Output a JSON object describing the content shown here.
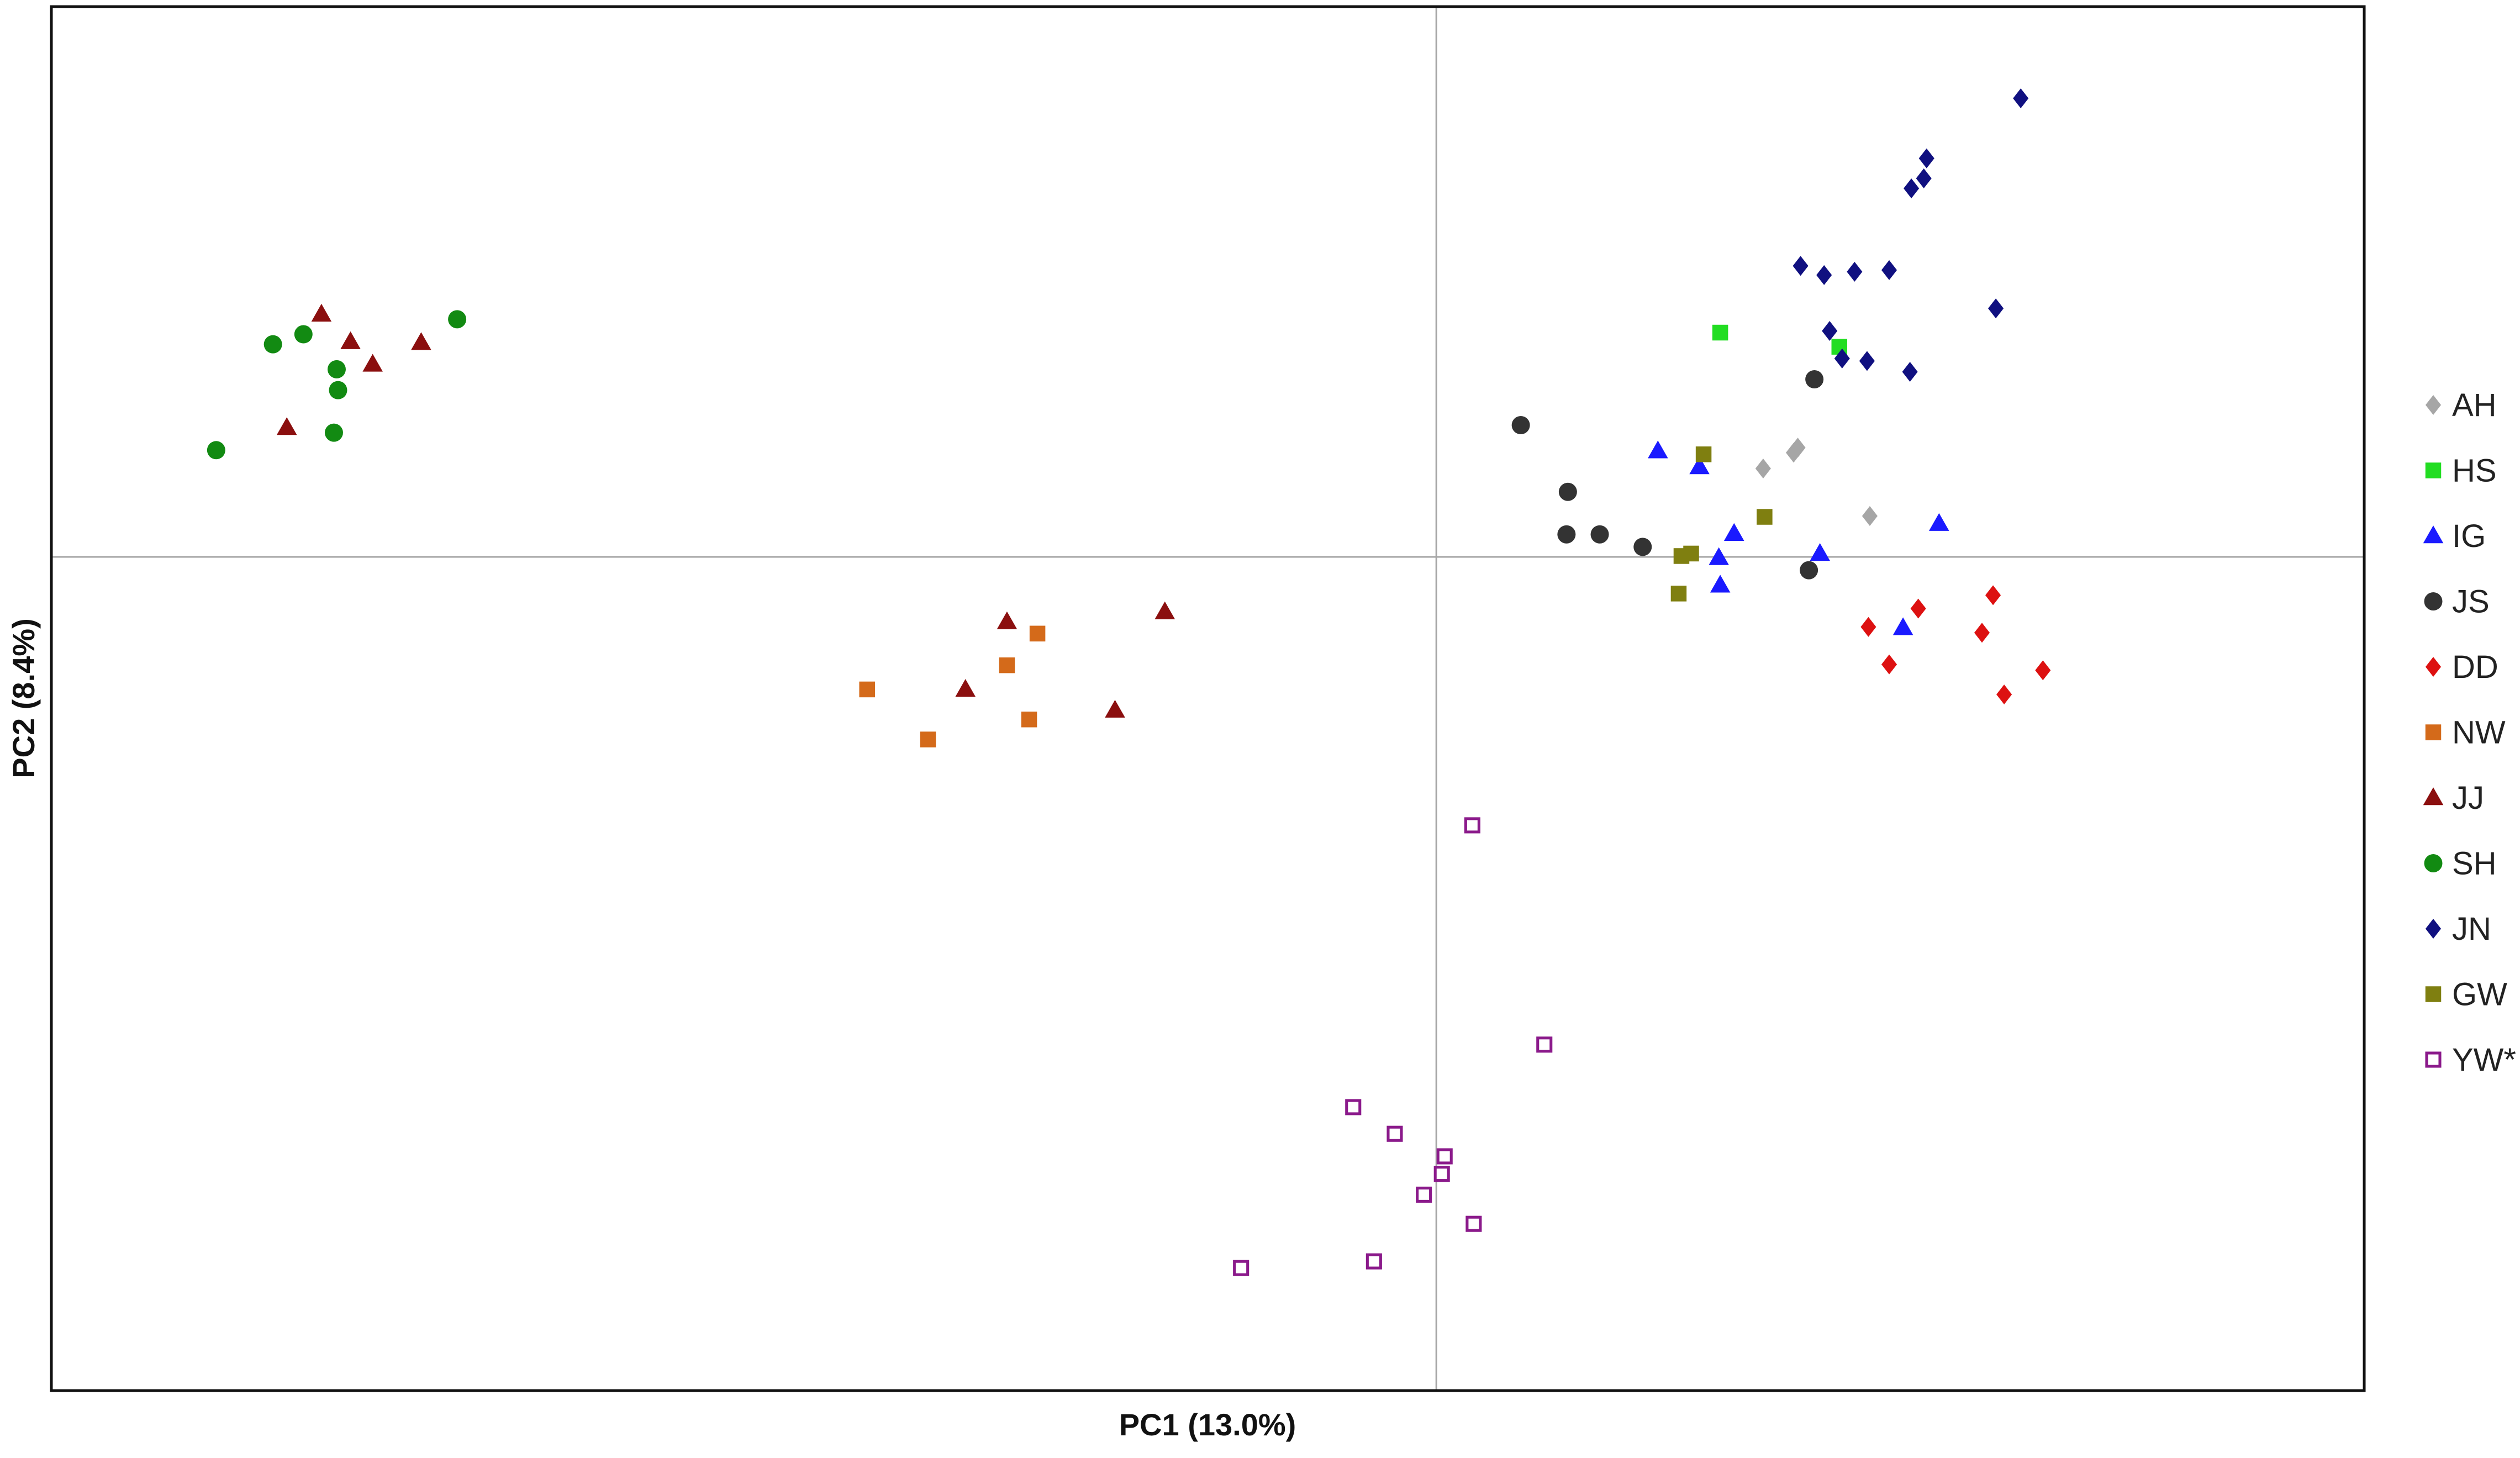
{
  "chart_data": {
    "type": "scatter",
    "title": "",
    "xlabel": "PC1 (13.0%)",
    "ylabel": "PC2 (8.4%)",
    "xlim": [
      -1.0,
      0.67
    ],
    "ylim": [
      -1.0,
      0.66
    ],
    "axis_ticks": false,
    "grid": false,
    "origin_lines": true,
    "legend_position": "right",
    "series": [
      {
        "name": "AH",
        "marker": "diamond",
        "color": "#a6a6a6",
        "filled": true,
        "points": [
          [
            0.236,
            0.106
          ],
          [
            0.258,
            0.125
          ],
          [
            0.261,
            0.131
          ],
          [
            0.313,
            0.049
          ]
        ]
      },
      {
        "name": "HS",
        "marker": "square",
        "color": "#22dd22",
        "filled": true,
        "points": [
          [
            0.205,
            0.269
          ],
          [
            0.291,
            0.252
          ]
        ]
      },
      {
        "name": "IG",
        "marker": "triangle",
        "color": "#1a1aff",
        "filled": true,
        "points": [
          [
            0.16,
            0.127
          ],
          [
            0.19,
            0.108
          ],
          [
            0.215,
            0.028
          ],
          [
            0.204,
            -0.001
          ],
          [
            0.205,
            -0.034
          ],
          [
            0.277,
            0.004
          ],
          [
            0.337,
            -0.085
          ],
          [
            0.363,
            0.04
          ]
        ]
      },
      {
        "name": "JS",
        "marker": "circle",
        "color": "#333333",
        "filled": true,
        "points": [
          [
            0.061,
            0.158
          ],
          [
            0.095,
            0.078
          ],
          [
            0.273,
            0.213
          ],
          [
            0.094,
            0.027
          ],
          [
            0.118,
            0.027
          ],
          [
            0.149,
            0.012
          ],
          [
            0.269,
            -0.016
          ]
        ]
      },
      {
        "name": "DD",
        "marker": "diamond",
        "color": "#dd1111",
        "filled": true,
        "points": [
          [
            0.312,
            -0.084
          ],
          [
            0.327,
            -0.129
          ],
          [
            0.348,
            -0.062
          ],
          [
            0.402,
            -0.046
          ],
          [
            0.394,
            -0.091
          ],
          [
            0.41,
            -0.165
          ],
          [
            0.438,
            -0.136
          ]
        ]
      },
      {
        "name": "NW",
        "marker": "square",
        "color": "#d46a1a",
        "filled": true,
        "points": [
          [
            -0.288,
            -0.092
          ],
          [
            -0.31,
            -0.13
          ],
          [
            -0.411,
            -0.159
          ],
          [
            -0.367,
            -0.219
          ],
          [
            -0.294,
            -0.195
          ]
        ]
      },
      {
        "name": "JJ",
        "marker": "triangle",
        "color": "#8b0f0f",
        "filled": true,
        "points": [
          [
            -0.805,
            0.291
          ],
          [
            -0.784,
            0.258
          ],
          [
            -0.768,
            0.231
          ],
          [
            -0.733,
            0.257
          ],
          [
            -0.83,
            0.155
          ],
          [
            -0.31,
            -0.078
          ],
          [
            -0.34,
            -0.159
          ],
          [
            -0.196,
            -0.066
          ],
          [
            -0.232,
            -0.184
          ]
        ]
      },
      {
        "name": "SH",
        "marker": "circle",
        "color": "#128a12",
        "filled": true,
        "points": [
          [
            -0.818,
            0.267
          ],
          [
            -0.84,
            0.255
          ],
          [
            -0.794,
            0.225
          ],
          [
            -0.793,
            0.2
          ],
          [
            -0.796,
            0.149
          ],
          [
            -0.881,
            0.128
          ],
          [
            -0.707,
            0.285
          ]
        ]
      },
      {
        "name": "JN",
        "marker": "diamond",
        "color": "#101080",
        "filled": true,
        "points": [
          [
            0.422,
            0.55
          ],
          [
            0.354,
            0.478
          ],
          [
            0.352,
            0.454
          ],
          [
            0.343,
            0.442
          ],
          [
            0.263,
            0.349
          ],
          [
            0.28,
            0.338
          ],
          [
            0.302,
            0.342
          ],
          [
            0.327,
            0.344
          ],
          [
            0.404,
            0.298
          ],
          [
            0.284,
            0.271
          ],
          [
            0.293,
            0.238
          ],
          [
            0.311,
            0.235
          ],
          [
            0.342,
            0.222
          ]
        ]
      },
      {
        "name": "GW",
        "marker": "square",
        "color": "#7f7f10",
        "filled": true,
        "points": [
          [
            0.193,
            0.123
          ],
          [
            0.237,
            0.048
          ],
          [
            0.184,
            0.004
          ],
          [
            0.177,
            0.001
          ],
          [
            0.175,
            -0.044
          ]
        ]
      },
      {
        "name": "YW*",
        "marker": "square",
        "color": "#8b1a8b",
        "filled": false,
        "points": [
          [
            0.026,
            -0.322
          ],
          [
            0.078,
            -0.585
          ],
          [
            -0.06,
            -0.66
          ],
          [
            -0.03,
            -0.692
          ],
          [
            0.006,
            -0.719
          ],
          [
            0.004,
            -0.74
          ],
          [
            -0.009,
            -0.765
          ],
          [
            0.027,
            -0.8
          ],
          [
            -0.141,
            -0.853
          ],
          [
            -0.045,
            -0.845
          ]
        ]
      }
    ]
  }
}
